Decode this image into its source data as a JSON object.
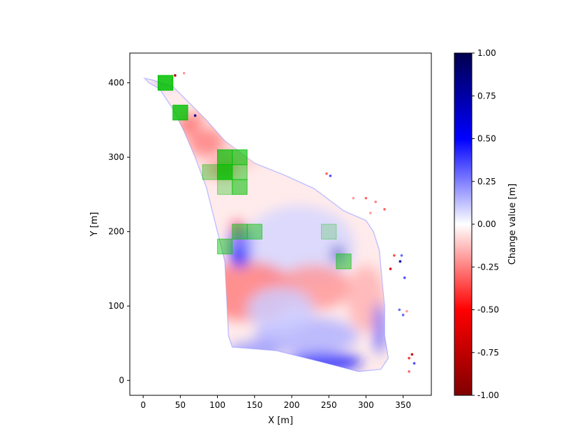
{
  "chart_data": {
    "type": "heatmap",
    "title": "",
    "xlabel": "X [m]",
    "ylabel": "Y [m]",
    "xlim": [
      -18,
      388
    ],
    "ylim": [
      -20,
      440
    ],
    "x_ticks": [
      0,
      50,
      100,
      150,
      200,
      250,
      300,
      350
    ],
    "y_ticks": [
      0,
      100,
      200,
      300,
      400
    ],
    "grid": false,
    "colorbar": {
      "label": "Change value [m]",
      "range": [
        -1.0,
        1.0
      ],
      "ticks": [
        "1.00",
        "0.75",
        "0.50",
        "0.25",
        "0.00",
        "-0.25",
        "-0.50",
        "-0.75",
        "-1.00"
      ],
      "colormap": "seismic_r",
      "colors": {
        "positive": "#00004d",
        "zero": "#ffffff",
        "negative": "#800000"
      }
    },
    "surface_outline": [
      [
        2,
        406
      ],
      [
        12,
        404
      ],
      [
        40,
        395
      ],
      [
        60,
        375
      ],
      [
        85,
        350
      ],
      [
        110,
        322
      ],
      [
        150,
        292
      ],
      [
        190,
        276
      ],
      [
        230,
        258
      ],
      [
        270,
        228
      ],
      [
        300,
        215
      ],
      [
        310,
        200
      ],
      [
        318,
        175
      ],
      [
        322,
        130
      ],
      [
        325,
        100
      ],
      [
        325,
        60
      ],
      [
        330,
        30
      ],
      [
        320,
        15
      ],
      [
        290,
        12
      ],
      [
        240,
        25
      ],
      [
        180,
        40
      ],
      [
        120,
        45
      ],
      [
        115,
        60
      ],
      [
        113,
        100
      ],
      [
        110,
        160
      ],
      [
        100,
        200
      ],
      [
        85,
        260
      ],
      [
        70,
        300
      ],
      [
        55,
        335
      ],
      [
        40,
        365
      ],
      [
        22,
        392
      ],
      [
        8,
        400
      ]
    ],
    "change_patches": [
      {
        "x": 320,
        "y": 320,
        "rx": 65,
        "ry": 70,
        "value": -0.05
      },
      {
        "x": 210,
        "y": 180,
        "rx": 75,
        "ry": 55,
        "value": 0.08
      },
      {
        "x": 140,
        "y": 120,
        "rx": 65,
        "ry": 40,
        "value": -0.25
      },
      {
        "x": 230,
        "y": 125,
        "rx": 50,
        "ry": 30,
        "value": -0.2
      },
      {
        "x": 300,
        "y": 110,
        "rx": 25,
        "ry": 45,
        "value": -0.15
      },
      {
        "x": 220,
        "y": 60,
        "rx": 70,
        "ry": 25,
        "value": 0.15
      },
      {
        "x": 245,
        "y": 25,
        "rx": 50,
        "ry": 12,
        "value": 0.45
      },
      {
        "x": 150,
        "y": 40,
        "rx": 35,
        "ry": 12,
        "value": 0.2
      },
      {
        "x": 85,
        "y": 320,
        "rx": 25,
        "ry": 20,
        "value": -0.25
      },
      {
        "x": 130,
        "y": 300,
        "rx": 25,
        "ry": 18,
        "value": -0.1
      },
      {
        "x": 130,
        "y": 180,
        "rx": 15,
        "ry": 30,
        "value": 0.3
      },
      {
        "x": 130,
        "y": 165,
        "rx": 12,
        "ry": 10,
        "value": 0.45
      },
      {
        "x": 262,
        "y": 170,
        "rx": 8,
        "ry": 10,
        "value": 0.7
      },
      {
        "x": 128,
        "y": 205,
        "rx": 8,
        "ry": 8,
        "value": -0.55
      },
      {
        "x": 110,
        "y": 285,
        "rx": 14,
        "ry": 12,
        "value": -0.3
      },
      {
        "x": 30,
        "y": 405,
        "rx": 10,
        "ry": 4,
        "value": 0.45
      },
      {
        "x": 70,
        "y": 352,
        "rx": 15,
        "ry": 6,
        "value": -0.3
      },
      {
        "x": 92,
        "y": 282,
        "rx": 10,
        "ry": 8,
        "value": -0.2
      },
      {
        "x": 318,
        "y": 70,
        "rx": 7,
        "ry": 35,
        "value": 0.35
      },
      {
        "x": 185,
        "y": 95,
        "rx": 45,
        "ry": 30,
        "value": 0.1
      },
      {
        "x": 60,
        "y": 340,
        "rx": 12,
        "ry": 10,
        "value": -0.3
      },
      {
        "x": 50,
        "y": 350,
        "rx": 5,
        "ry": 3,
        "value": -0.7
      },
      {
        "x": 355,
        "y": 355,
        "rx": 1,
        "ry": 1,
        "value": 0.0
      }
    ],
    "satellite_points": [
      {
        "x": 247,
        "y": 278,
        "value": -0.3
      },
      {
        "x": 252,
        "y": 275,
        "value": 0.35
      },
      {
        "x": 300,
        "y": 245,
        "value": -0.3
      },
      {
        "x": 313,
        "y": 240,
        "value": -0.25
      },
      {
        "x": 325,
        "y": 230,
        "value": -0.3
      },
      {
        "x": 338,
        "y": 168,
        "value": -0.35
      },
      {
        "x": 348,
        "y": 168,
        "value": 0.3
      },
      {
        "x": 346,
        "y": 160,
        "value": 0.75
      },
      {
        "x": 333,
        "y": 150,
        "value": -0.6
      },
      {
        "x": 352,
        "y": 138,
        "value": 0.35
      },
      {
        "x": 345,
        "y": 95,
        "value": 0.3
      },
      {
        "x": 350,
        "y": 88,
        "value": 0.3
      },
      {
        "x": 355,
        "y": 93,
        "value": -0.2
      },
      {
        "x": 362,
        "y": 35,
        "value": -0.7
      },
      {
        "x": 358,
        "y": 30,
        "value": -0.4
      },
      {
        "x": 365,
        "y": 23,
        "value": 0.35
      },
      {
        "x": 358,
        "y": 12,
        "value": -0.3
      },
      {
        "x": 55,
        "y": 413,
        "value": -0.2
      },
      {
        "x": 43,
        "y": 410,
        "value": -0.8
      },
      {
        "x": 70,
        "y": 356,
        "value": 0.8
      },
      {
        "x": 283,
        "y": 245,
        "value": -0.2
      },
      {
        "x": 306,
        "y": 225,
        "value": -0.2
      }
    ],
    "overlay_squares": {
      "color": "#00c000",
      "size": 20,
      "cells": [
        {
          "x": 30,
          "y": 400,
          "opacity": 0.85
        },
        {
          "x": 50,
          "y": 360,
          "opacity": 0.8
        },
        {
          "x": 110,
          "y": 300,
          "opacity": 0.7
        },
        {
          "x": 130,
          "y": 300,
          "opacity": 0.65
        },
        {
          "x": 90,
          "y": 280,
          "opacity": 0.35
        },
        {
          "x": 110,
          "y": 280,
          "opacity": 0.85
        },
        {
          "x": 130,
          "y": 280,
          "opacity": 0.45
        },
        {
          "x": 110,
          "y": 260,
          "opacity": 0.3
        },
        {
          "x": 130,
          "y": 260,
          "opacity": 0.55
        },
        {
          "x": 130,
          "y": 200,
          "opacity": 0.45
        },
        {
          "x": 150,
          "y": 200,
          "opacity": 0.45
        },
        {
          "x": 110,
          "y": 180,
          "opacity": 0.45
        },
        {
          "x": 250,
          "y": 200,
          "opacity": 0.2
        },
        {
          "x": 270,
          "y": 160,
          "opacity": 0.45
        }
      ]
    }
  }
}
